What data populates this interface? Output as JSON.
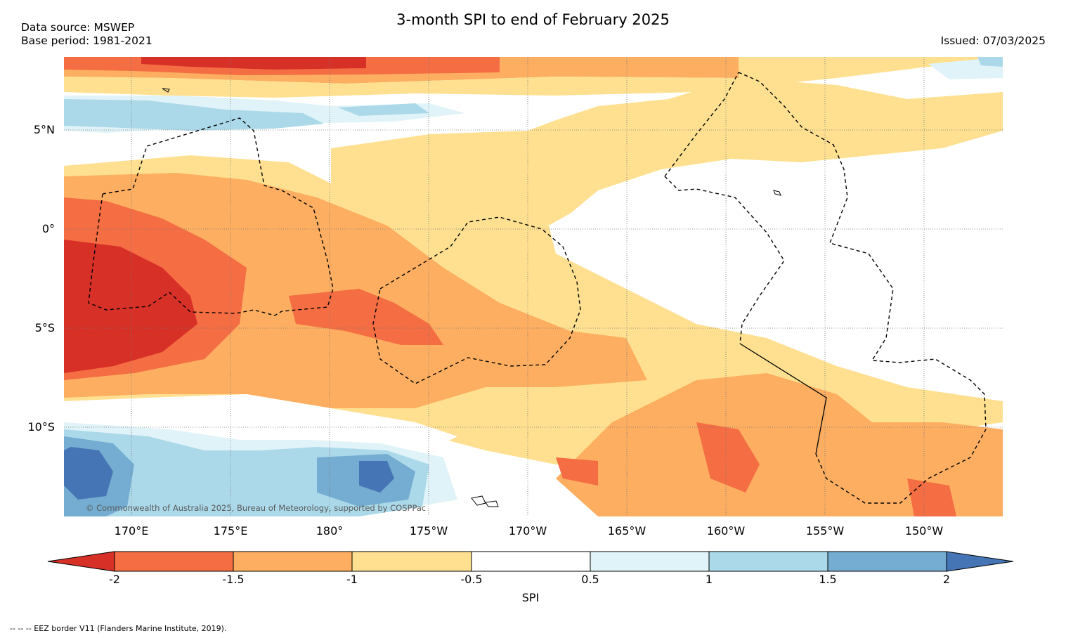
{
  "title": "3-month SPI to end of February 2025",
  "data_source": "Data source: MSWEP",
  "base_period": "Base period: 1981-2021",
  "issued": "Issued: 07/03/2025",
  "copyright": "© Commonwealth of Australia 2025, Bureau of Meteorology, supported by COSPPac",
  "footnote": "-- -- -- EEZ border V11 (Flanders Marine Institute, 2019).",
  "colorbar": {
    "label": "SPI",
    "ticks": [
      "-2",
      "-1.5",
      "-1",
      "-0.5",
      "0.5",
      "1",
      "1.5",
      "2"
    ],
    "colors": [
      "#d73027",
      "#f46d43",
      "#fdae61",
      "#fee090",
      "#ffffff",
      "#e0f3f8",
      "#abd9e9",
      "#74add1",
      "#4575b4"
    ]
  },
  "axes": {
    "lat_labels": [
      "5°N",
      "0°",
      "5°S",
      "10°S"
    ],
    "lon_labels": [
      "170°E",
      "175°E",
      "180°",
      "175°W",
      "170°W",
      "165°W",
      "160°W",
      "155°W",
      "150°W"
    ]
  },
  "map": {
    "region": "Central Pacific",
    "variable": "SPI",
    "period": "3-month to end of February 2025",
    "dominant_patterns": [
      {
        "area": "western equatorial (170°E–175°E, 0°–8°S)",
        "spi_class": "below -2"
      },
      {
        "area": "southwest corner (170°E–180°, 11°S–14°S)",
        "spi_class": "1.5 to above 2"
      },
      {
        "area": "east of 170°W near equator",
        "spi_class": "-0.5 to 0.5"
      },
      {
        "area": "southeast (165°W–150°W, 9°S–14°S)",
        "spi_class": "-1 to -2"
      }
    ]
  }
}
